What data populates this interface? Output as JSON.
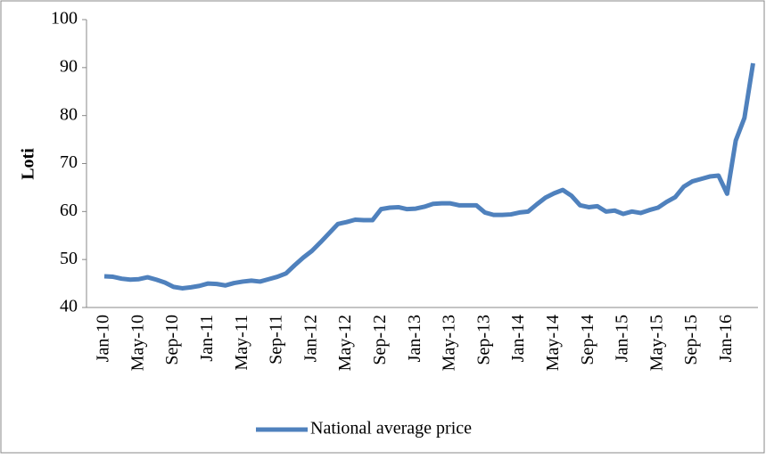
{
  "chart_data": {
    "type": "line",
    "y_label": "Loti",
    "categories": [
      "Jan-10",
      null,
      null,
      null,
      "May-10",
      null,
      null,
      null,
      "Sep-10",
      null,
      null,
      null,
      "Jan-11",
      null,
      null,
      null,
      "May-11",
      null,
      null,
      null,
      "Sep-11",
      null,
      null,
      null,
      "Jan-12",
      null,
      null,
      null,
      "May-12",
      null,
      null,
      null,
      "Sep-12",
      null,
      null,
      null,
      "Jan-13",
      null,
      null,
      null,
      "May-13",
      null,
      null,
      null,
      "Sep-13",
      null,
      null,
      null,
      "Jan-14",
      null,
      null,
      null,
      "May-14",
      null,
      null,
      null,
      "Sep-14",
      null,
      null,
      null,
      "Jan-15",
      null,
      null,
      null,
      "May-15",
      null,
      null,
      null,
      "Sep-15",
      null,
      null,
      null,
      "Jan-16",
      null,
      null,
      null
    ],
    "series": [
      {
        "name": "National average price",
        "color": "#4f81bd",
        "values": [
          46.5,
          46.4,
          46.0,
          45.8,
          45.9,
          46.3,
          45.8,
          45.2,
          44.3,
          44.0,
          44.2,
          44.5,
          45.0,
          44.9,
          44.6,
          45.1,
          45.4,
          45.6,
          45.4,
          45.9,
          46.4,
          47.1,
          48.8,
          50.4,
          51.8,
          53.6,
          55.5,
          57.4,
          57.8,
          58.3,
          58.2,
          58.2,
          60.5,
          60.8,
          60.9,
          60.5,
          60.6,
          61.0,
          61.6,
          61.7,
          61.7,
          61.3,
          61.3,
          61.3,
          59.8,
          59.3,
          59.3,
          59.4,
          59.8,
          60.0,
          61.5,
          62.9,
          63.8,
          64.5,
          63.3,
          61.3,
          60.9,
          61.1,
          60.0,
          60.2,
          59.5,
          60.0,
          59.7,
          60.3,
          60.8,
          62.0,
          63.0,
          65.2,
          66.3,
          66.8,
          67.3,
          67.5,
          63.7,
          74.8,
          79.5,
          90.9
        ]
      }
    ],
    "ylim": [
      40,
      100
    ],
    "yticks": [
      40,
      50,
      60,
      70,
      80,
      90,
      100
    ],
    "legend": "bottom",
    "grid": false
  }
}
